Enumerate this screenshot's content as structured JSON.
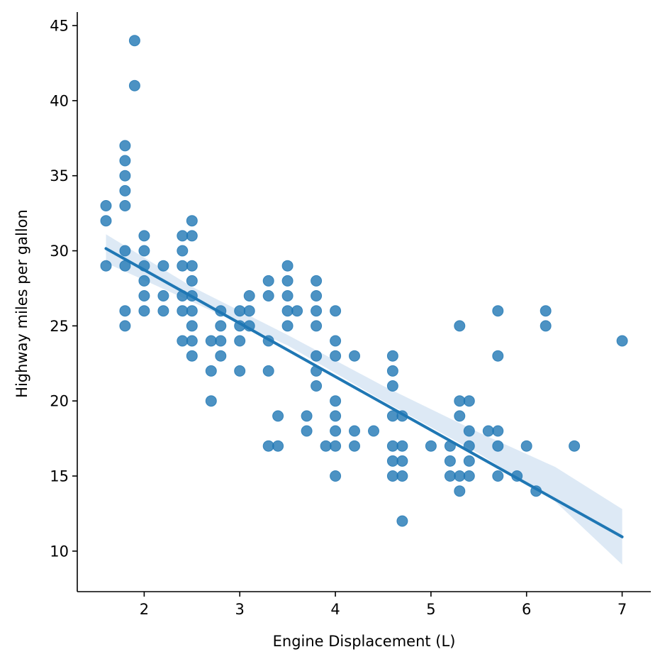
{
  "chart_data": {
    "type": "scatter",
    "title": "",
    "xlabel": "Engine Displacement (L)",
    "ylabel": "Highway miles per gallon",
    "xlim": [
      1.3,
      7.3
    ],
    "ylim": [
      7.3,
      45.9
    ],
    "xticks": [
      2,
      3,
      4,
      5,
      6,
      7
    ],
    "yticks": [
      10,
      15,
      20,
      25,
      30,
      35,
      40,
      45
    ],
    "grid": false,
    "colors": {
      "points": "#1f77b4",
      "line": "#1f77b4",
      "band": "#c6dbef"
    },
    "points": [
      [
        1.6,
        33
      ],
      [
        1.6,
        32
      ],
      [
        1.6,
        29
      ],
      [
        1.8,
        37
      ],
      [
        1.8,
        36
      ],
      [
        1.8,
        35
      ],
      [
        1.8,
        34
      ],
      [
        1.8,
        33
      ],
      [
        1.8,
        30
      ],
      [
        1.8,
        29
      ],
      [
        1.8,
        26
      ],
      [
        1.8,
        25
      ],
      [
        1.9,
        44
      ],
      [
        1.9,
        41
      ],
      [
        2.0,
        31
      ],
      [
        2.0,
        30
      ],
      [
        2.0,
        29
      ],
      [
        2.0,
        28
      ],
      [
        2.0,
        27
      ],
      [
        2.0,
        26
      ],
      [
        2.2,
        29
      ],
      [
        2.2,
        27
      ],
      [
        2.2,
        26
      ],
      [
        2.4,
        31
      ],
      [
        2.4,
        30
      ],
      [
        2.4,
        29
      ],
      [
        2.4,
        27
      ],
      [
        2.4,
        26
      ],
      [
        2.4,
        24
      ],
      [
        2.5,
        32
      ],
      [
        2.5,
        31
      ],
      [
        2.5,
        29
      ],
      [
        2.5,
        28
      ],
      [
        2.5,
        27
      ],
      [
        2.5,
        26
      ],
      [
        2.5,
        25
      ],
      [
        2.5,
        24
      ],
      [
        2.5,
        23
      ],
      [
        2.7,
        24
      ],
      [
        2.7,
        22
      ],
      [
        2.7,
        20
      ],
      [
        2.8,
        26
      ],
      [
        2.8,
        25
      ],
      [
        2.8,
        24
      ],
      [
        2.8,
        23
      ],
      [
        3.0,
        26
      ],
      [
        3.0,
        25
      ],
      [
        3.0,
        24
      ],
      [
        3.0,
        22
      ],
      [
        3.1,
        27
      ],
      [
        3.1,
        26
      ],
      [
        3.1,
        25
      ],
      [
        3.3,
        28
      ],
      [
        3.3,
        27
      ],
      [
        3.3,
        24
      ],
      [
        3.3,
        22
      ],
      [
        3.3,
        17
      ],
      [
        3.4,
        19
      ],
      [
        3.4,
        17
      ],
      [
        3.5,
        29
      ],
      [
        3.5,
        28
      ],
      [
        3.5,
        27
      ],
      [
        3.5,
        26
      ],
      [
        3.5,
        25
      ],
      [
        3.6,
        26
      ],
      [
        3.7,
        19
      ],
      [
        3.7,
        18
      ],
      [
        3.8,
        28
      ],
      [
        3.8,
        27
      ],
      [
        3.8,
        26
      ],
      [
        3.8,
        25
      ],
      [
        3.8,
        23
      ],
      [
        3.8,
        22
      ],
      [
        3.8,
        21
      ],
      [
        3.9,
        17
      ],
      [
        4.0,
        26
      ],
      [
        4.0,
        24
      ],
      [
        4.0,
        23
      ],
      [
        4.0,
        20
      ],
      [
        4.0,
        19
      ],
      [
        4.0,
        18
      ],
      [
        4.0,
        17
      ],
      [
        4.0,
        15
      ],
      [
        4.2,
        23
      ],
      [
        4.2,
        18
      ],
      [
        4.2,
        17
      ],
      [
        4.4,
        18
      ],
      [
        4.6,
        23
      ],
      [
        4.6,
        22
      ],
      [
        4.6,
        21
      ],
      [
        4.6,
        19
      ],
      [
        4.6,
        17
      ],
      [
        4.6,
        16
      ],
      [
        4.6,
        15
      ],
      [
        4.7,
        19
      ],
      [
        4.7,
        17
      ],
      [
        4.7,
        16
      ],
      [
        4.7,
        15
      ],
      [
        4.7,
        12
      ],
      [
        5.0,
        17
      ],
      [
        5.2,
        17
      ],
      [
        5.2,
        16
      ],
      [
        5.2,
        15
      ],
      [
        5.3,
        25
      ],
      [
        5.3,
        20
      ],
      [
        5.3,
        19
      ],
      [
        5.3,
        15
      ],
      [
        5.3,
        14
      ],
      [
        5.4,
        20
      ],
      [
        5.4,
        18
      ],
      [
        5.4,
        17
      ],
      [
        5.4,
        16
      ],
      [
        5.4,
        15
      ],
      [
        5.6,
        18
      ],
      [
        5.7,
        26
      ],
      [
        5.7,
        23
      ],
      [
        5.7,
        18
      ],
      [
        5.7,
        17
      ],
      [
        5.7,
        15
      ],
      [
        5.9,
        15
      ],
      [
        6.0,
        17
      ],
      [
        6.1,
        14
      ],
      [
        6.2,
        26
      ],
      [
        6.2,
        25
      ],
      [
        6.5,
        17
      ],
      [
        7.0,
        24
      ]
    ],
    "regression": {
      "x": [
        1.6,
        7.0
      ],
      "y": [
        30.15,
        10.95
      ],
      "ci_x": [
        1.6,
        2.5,
        3.5,
        4.5,
        5.5,
        6.3,
        7.0
      ],
      "ci_lower": [
        29.2,
        26.6,
        23.7,
        20.0,
        16.5,
        13.3,
        9.1
      ],
      "ci_upper": [
        31.1,
        27.6,
        24.4,
        21.0,
        17.9,
        15.6,
        12.8
      ]
    }
  }
}
